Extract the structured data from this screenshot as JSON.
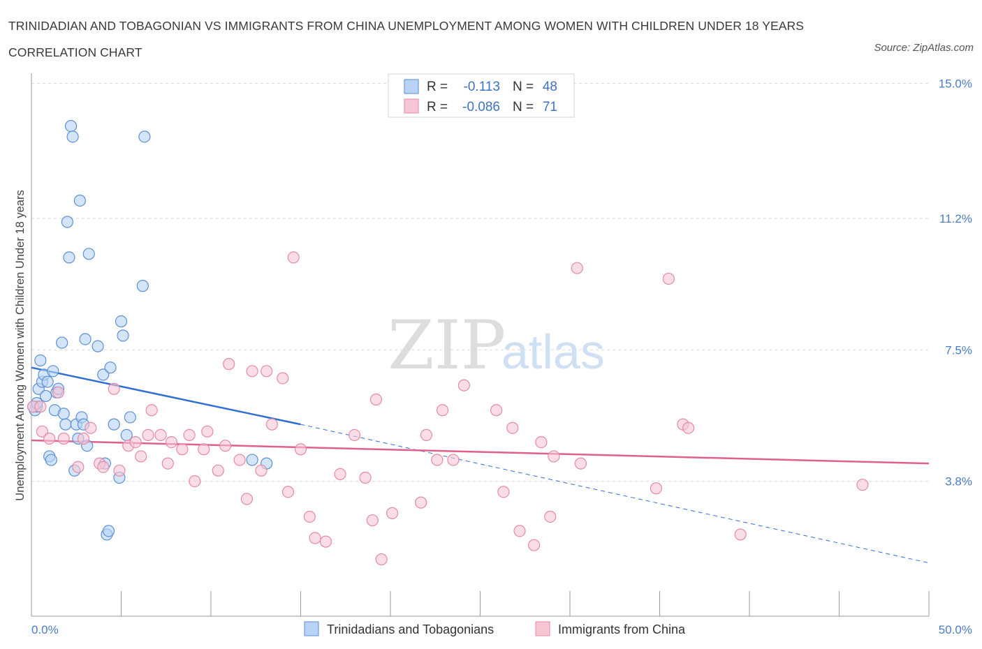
{
  "title": "TRINIDADIAN AND TOBAGONIAN VS IMMIGRANTS FROM CHINA UNEMPLOYMENT AMONG WOMEN WITH CHILDREN UNDER 18 YEARS CORRELATION CHART",
  "source": "Source: ZipAtlas.com",
  "watermark": {
    "zip": "ZIP",
    "atlas": "atlas"
  },
  "colors": {
    "series1_fill": "#b8d3f5",
    "series1_stroke": "#5b8fd6",
    "series1_line": "#2f6fd1",
    "series2_fill": "#f7c6d5",
    "series2_stroke": "#e48aa8",
    "series2_line": "#e0608d",
    "tick_text": "#4a7cc7",
    "grid": "#d9d9d9"
  },
  "legend": {
    "r_label": "R =",
    "n_label": "N =",
    "rows": [
      {
        "r": "-0.113",
        "n": "48"
      },
      {
        "r": "-0.086",
        "n": "71"
      }
    ]
  },
  "chart_data": {
    "type": "scatter",
    "title": "TRINIDADIAN AND TOBAGONIAN VS IMMIGRANTS FROM CHINA UNEMPLOYMENT AMONG WOMEN WITH CHILDREN UNDER 18 YEARS CORRELATION CHART",
    "xlabel": "",
    "ylabel": "Unemployment Among Women with Children Under 18 years",
    "xlim": [
      0,
      50
    ],
    "ylim": [
      0,
      15.5
    ],
    "x_tick_labels": [
      "0.0%",
      "50.0%"
    ],
    "y_ticks": [
      3.8,
      7.5,
      11.2,
      15.0
    ],
    "y_tick_labels": [
      "3.8%",
      "7.5%",
      "11.2%",
      "15.0%"
    ],
    "grid": "horizontal dashed",
    "legend_position": "top-center",
    "series": [
      {
        "name": "Trinidadians and Tobagonians",
        "points": [
          [
            0.2,
            5.8
          ],
          [
            0.3,
            5.9
          ],
          [
            0.4,
            6.4
          ],
          [
            0.5,
            7.2
          ],
          [
            0.6,
            6.6
          ],
          [
            0.7,
            6.8
          ],
          [
            0.8,
            6.2
          ],
          [
            0.9,
            6.6
          ],
          [
            1.0,
            4.5
          ],
          [
            1.1,
            4.4
          ],
          [
            1.2,
            6.9
          ],
          [
            1.3,
            5.8
          ],
          [
            1.4,
            6.3
          ],
          [
            1.5,
            6.4
          ],
          [
            1.7,
            7.7
          ],
          [
            1.8,
            5.7
          ],
          [
            1.9,
            5.4
          ],
          [
            2.0,
            11.1
          ],
          [
            2.1,
            10.1
          ],
          [
            2.2,
            13.8
          ],
          [
            2.3,
            13.5
          ],
          [
            2.4,
            4.1
          ],
          [
            2.5,
            5.4
          ],
          [
            2.6,
            5.0
          ],
          [
            2.7,
            11.7
          ],
          [
            2.8,
            5.6
          ],
          [
            2.9,
            5.4
          ],
          [
            3.0,
            7.8
          ],
          [
            3.1,
            4.8
          ],
          [
            3.2,
            10.2
          ],
          [
            3.7,
            7.6
          ],
          [
            4.0,
            6.8
          ],
          [
            4.1,
            4.3
          ],
          [
            4.2,
            2.3
          ],
          [
            4.3,
            2.4
          ],
          [
            4.4,
            7.0
          ],
          [
            4.6,
            5.4
          ],
          [
            4.9,
            3.9
          ],
          [
            5.0,
            8.3
          ],
          [
            5.1,
            7.9
          ],
          [
            5.3,
            5.1
          ],
          [
            5.5,
            5.6
          ],
          [
            6.2,
            9.3
          ],
          [
            6.3,
            13.5
          ],
          [
            12.3,
            4.4
          ],
          [
            13.1,
            4.3
          ],
          [
            0.1,
            5.9
          ],
          [
            0.3,
            6.0
          ]
        ]
      },
      {
        "name": "Immigrants from China",
        "points": [
          [
            0.1,
            5.9
          ],
          [
            0.5,
            5.9
          ],
          [
            0.6,
            5.2
          ],
          [
            1.0,
            5.0
          ],
          [
            1.5,
            6.3
          ],
          [
            1.8,
            5.0
          ],
          [
            2.6,
            4.2
          ],
          [
            2.9,
            5.0
          ],
          [
            3.3,
            5.3
          ],
          [
            3.8,
            4.3
          ],
          [
            4.0,
            4.2
          ],
          [
            4.6,
            6.4
          ],
          [
            4.9,
            4.1
          ],
          [
            5.4,
            4.8
          ],
          [
            5.8,
            4.9
          ],
          [
            6.1,
            4.5
          ],
          [
            6.5,
            5.1
          ],
          [
            6.7,
            5.8
          ],
          [
            7.2,
            5.1
          ],
          [
            7.6,
            4.3
          ],
          [
            7.8,
            4.9
          ],
          [
            8.4,
            4.7
          ],
          [
            8.8,
            5.1
          ],
          [
            9.1,
            3.8
          ],
          [
            9.6,
            4.7
          ],
          [
            9.8,
            5.2
          ],
          [
            10.4,
            4.1
          ],
          [
            10.8,
            4.8
          ],
          [
            11.0,
            7.1
          ],
          [
            11.6,
            4.4
          ],
          [
            12.0,
            3.3
          ],
          [
            12.3,
            6.9
          ],
          [
            12.8,
            4.1
          ],
          [
            13.1,
            6.9
          ],
          [
            13.4,
            5.4
          ],
          [
            14.0,
            6.7
          ],
          [
            14.3,
            3.5
          ],
          [
            14.6,
            10.1
          ],
          [
            15.0,
            4.7
          ],
          [
            15.5,
            2.8
          ],
          [
            15.8,
            2.2
          ],
          [
            16.4,
            2.1
          ],
          [
            17.2,
            4.0
          ],
          [
            18.0,
            5.1
          ],
          [
            18.6,
            3.9
          ],
          [
            19.0,
            2.7
          ],
          [
            19.2,
            6.1
          ],
          [
            19.5,
            1.6
          ],
          [
            20.1,
            2.9
          ],
          [
            21.7,
            3.2
          ],
          [
            22.0,
            5.1
          ],
          [
            22.6,
            4.4
          ],
          [
            22.9,
            5.8
          ],
          [
            23.5,
            4.4
          ],
          [
            24.1,
            6.5
          ],
          [
            25.9,
            5.8
          ],
          [
            26.3,
            3.5
          ],
          [
            26.8,
            5.3
          ],
          [
            27.2,
            2.4
          ],
          [
            28.0,
            2.0
          ],
          [
            28.4,
            4.9
          ],
          [
            28.9,
            2.8
          ],
          [
            29.1,
            4.5
          ],
          [
            30.4,
            9.8
          ],
          [
            30.6,
            4.3
          ],
          [
            34.8,
            3.6
          ],
          [
            35.5,
            9.5
          ],
          [
            36.3,
            5.4
          ],
          [
            36.6,
            5.3
          ],
          [
            39.5,
            2.3
          ],
          [
            46.3,
            3.7
          ]
        ]
      }
    ],
    "trend_lines": [
      {
        "series": "Trinidadians and Tobagonians",
        "solid": [
          [
            0,
            7.0
          ],
          [
            15,
            5.4
          ]
        ],
        "dashed": [
          [
            15,
            5.4
          ],
          [
            50,
            1.5
          ]
        ]
      },
      {
        "series": "Immigrants from China",
        "solid": [
          [
            0,
            4.95
          ],
          [
            50,
            4.3
          ]
        ]
      }
    ]
  }
}
